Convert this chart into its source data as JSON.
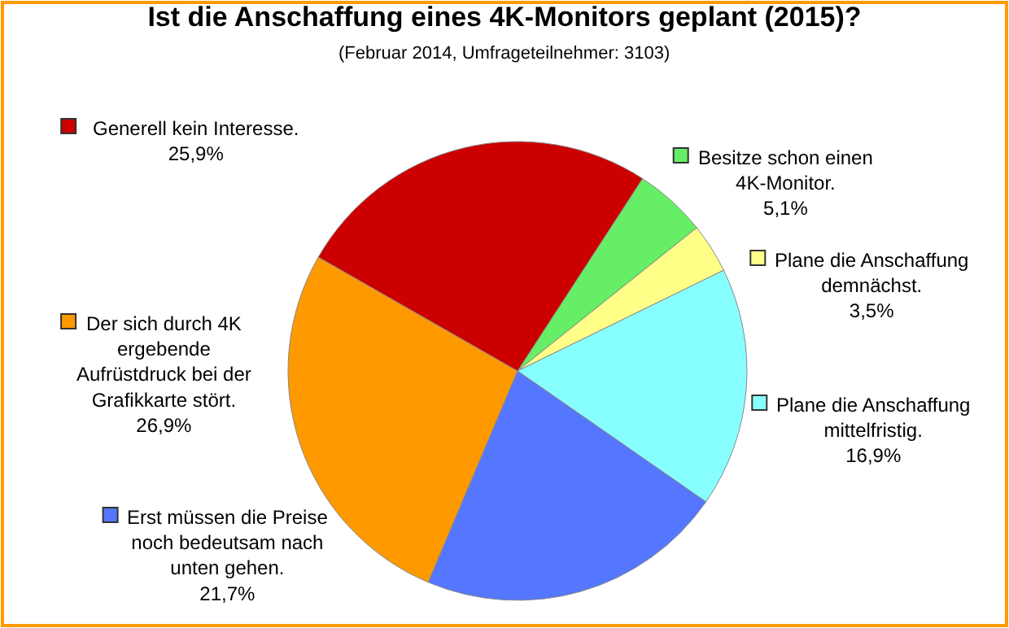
{
  "chart_data": {
    "type": "pie",
    "title": "Ist die Anschaffung eines 4K-Monitors geplant (2015)?",
    "subtitle": "(Februar 2014, Umfrageteilnehmer: 3103)",
    "categories": [
      "Besitze schon einen 4K-Monitor.",
      "Plane die Anschaffung demnächst.",
      "Plane die Anschaffung mittelfristig.",
      "Erst müssen die Preise noch bedeutsam nach unten gehen.",
      "Der sich durch 4K ergebende Aufrüstdruck bei der Grafikkarte stört.",
      "Generell kein Interesse."
    ],
    "values": [
      5.1,
      3.5,
      16.9,
      21.7,
      26.9,
      25.9
    ],
    "value_labels": [
      "5,1%",
      "3,5%",
      "16,9%",
      "21,7%",
      "26,9%",
      "25,9%"
    ],
    "colors": [
      "#66ee66",
      "#ffff88",
      "#88ffff",
      "#5577ff",
      "#ff9900",
      "#cc0000"
    ],
    "legend": "right"
  }
}
